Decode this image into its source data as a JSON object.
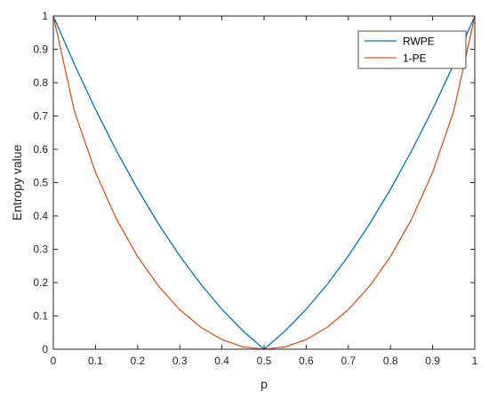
{
  "chart_data": {
    "type": "line",
    "title": "",
    "xlabel": "p",
    "ylabel": "Entropy value",
    "xlim": [
      0,
      1
    ],
    "ylim": [
      0,
      1
    ],
    "xticks": [
      "0",
      "0.1",
      "0.2",
      "0.3",
      "0.4",
      "0.5",
      "0.6",
      "0.7",
      "0.8",
      "0.9",
      "1"
    ],
    "yticks": [
      "0",
      "0.1",
      "0.2",
      "0.3",
      "0.4",
      "0.5",
      "0.6",
      "0.7",
      "0.8",
      "0.9",
      "1"
    ],
    "grid": false,
    "legend_position": "top-right",
    "x": [
      0,
      0.05,
      0.1,
      0.15,
      0.2,
      0.25,
      0.3,
      0.35,
      0.4,
      0.45,
      0.5,
      0.55,
      0.6,
      0.65,
      0.7,
      0.75,
      0.8,
      0.85,
      0.9,
      0.95,
      1
    ],
    "series": [
      {
        "name": "RWPE",
        "color": "#0072BD",
        "values": [
          1.0,
          0.855,
          0.72,
          0.595,
          0.48,
          0.375,
          0.28,
          0.195,
          0.12,
          0.055,
          0.0,
          0.055,
          0.12,
          0.195,
          0.28,
          0.375,
          0.48,
          0.595,
          0.72,
          0.855,
          1.0
        ]
      },
      {
        "name": "1-PE",
        "color": "#D95319",
        "values": [
          1.0,
          0.714,
          0.531,
          0.39,
          0.278,
          0.189,
          0.119,
          0.066,
          0.029,
          0.007,
          0.0,
          0.007,
          0.029,
          0.066,
          0.119,
          0.189,
          0.278,
          0.39,
          0.531,
          0.714,
          1.0
        ]
      }
    ]
  }
}
